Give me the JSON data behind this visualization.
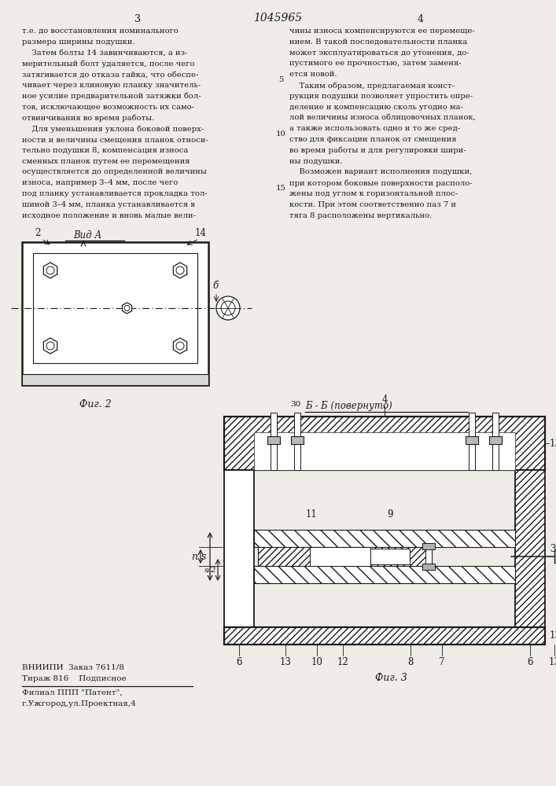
{
  "background_color": "#f0ede8",
  "text_color": "#1a1a1a",
  "line_color": "#1a1a1a",
  "page_title": "1045965",
  "col_left_num": "3",
  "col_right_num": "4",
  "left_col": [
    "т.е. до восстановления номинального",
    "размера ширины подушки.",
    "    Затем болты 14 завинчиваются, а из-",
    "мерительный болт удаляется, после чего",
    "затягивается до отказа гайка, что обеспе-",
    "чивает через клиновую планку значитель-",
    "ное усилие предварительной затяжки бол-",
    "тов, исключающее возможность их само-",
    "отвинчивания во время работы.",
    "    Для уменьшения уклона боковой поверх-",
    "ности и величины смещения планок относи-",
    "тельно подушки 8, компенсация износа",
    "сменных планок путем ее перемещения",
    "осуществляется до определенной величины",
    "износа, например 3–4 мм, после чего",
    "под планку устанавливается прокладка тол-",
    "шиной 3–4 мм, планка устанавливается в",
    "исходное положение и вновь малые вели-"
  ],
  "right_col": [
    "чины износа компенсируются ее перемеще-",
    "нием. В такой последовательности планка",
    "может эксплуатироваться до утонения, до-",
    "пустимого ее прочностью, затем заменя-",
    "ется новой.",
    "    Таким образом, предлагаемая конст-",
    "рукция подушки позволяет упростить опре-",
    "деление и компенсацию сколь угодно ма-",
    "лой величины износа облицовочных планок,",
    "а также использовать одно и то же сред-",
    "ство для фиксации планок от смещения",
    "во время работы и для регулировки шири-",
    "ны подушки.",
    "    Возможен вариант исполнения подушки,",
    "при котором боковые поверхности располо-",
    "жены под углом к горизонтальной плос-",
    "кости. При этом соответственно паз 7 и",
    "тяга 8 расположены вертикально."
  ],
  "vid_a": "Вид А",
  "fig2_label": "Фиг. 2",
  "section_label": "Б - Б (повернуто)",
  "section_num": "30",
  "fig3_label": "Фиг. 3",
  "vniiipi": "ВНИИПИ  Заказ 7611/8",
  "tirazh": "Тираж 816    Подписное",
  "filial": "Филиал ППП \"Патент\",",
  "addr": "г.Ужгород,ул.Проектная,4"
}
